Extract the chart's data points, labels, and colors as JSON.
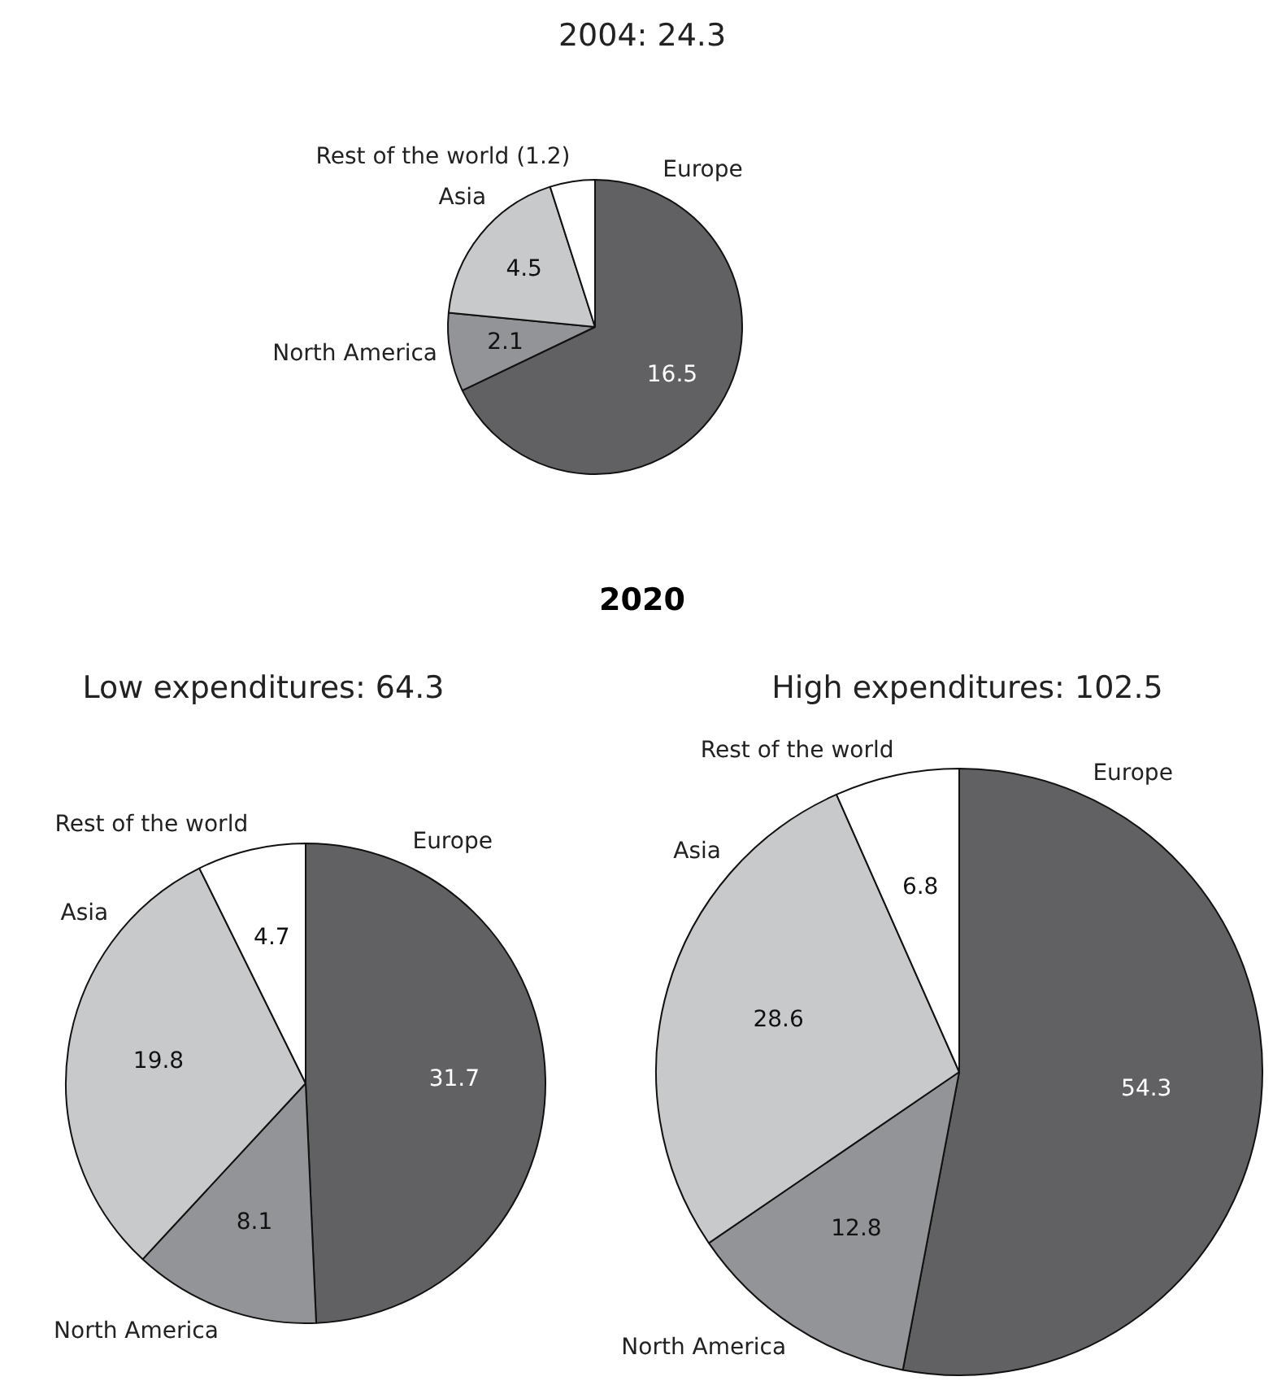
{
  "chart_data": [
    {
      "type": "pie",
      "title": "2004: 24.3",
      "categories": [
        "Europe",
        "North America",
        "Asia",
        "Rest of the world (1.2)"
      ],
      "values": [
        16.5,
        2.1,
        4.5,
        1.2
      ],
      "colors": [
        "#616163",
        "#939497",
        "#c8c9cb",
        "#ffffff"
      ],
      "value_labels": [
        "16.5",
        "2.1",
        "4.5",
        null
      ],
      "legend": false
    },
    {
      "type": "pie",
      "title": "Low expenditures: 64.3",
      "annotations": [
        "2020"
      ],
      "categories": [
        "Europe",
        "North America",
        "Asia",
        "Rest of the world"
      ],
      "values": [
        31.7,
        8.1,
        19.8,
        4.7
      ],
      "colors": [
        "#616163",
        "#939497",
        "#c8c9cb",
        "#ffffff"
      ],
      "data_labels": true,
      "legend": false
    },
    {
      "type": "pie",
      "title": "High expenditures: 102.5",
      "categories": [
        "Europe",
        "North America",
        "Asia",
        "Rest of the world"
      ],
      "values": [
        54.3,
        12.8,
        28.6,
        6.8
      ],
      "colors": [
        "#616163",
        "#939497",
        "#c8c9cb",
        "#ffffff"
      ],
      "data_labels": true,
      "legend": false
    }
  ]
}
